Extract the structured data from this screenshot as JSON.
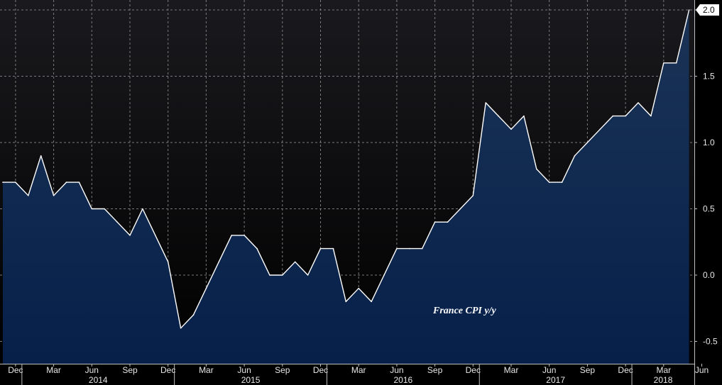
{
  "chart_data": {
    "type": "area",
    "annotation": "France CPI y/y",
    "x": [
      "2013-11",
      "2013-12",
      "2014-01",
      "2014-02",
      "2014-03",
      "2014-04",
      "2014-05",
      "2014-06",
      "2014-07",
      "2014-08",
      "2014-09",
      "2014-10",
      "2014-11",
      "2014-12",
      "2015-01",
      "2015-02",
      "2015-03",
      "2015-04",
      "2015-05",
      "2015-06",
      "2015-07",
      "2015-08",
      "2015-09",
      "2015-10",
      "2015-11",
      "2015-12",
      "2016-01",
      "2016-02",
      "2016-03",
      "2016-04",
      "2016-05",
      "2016-06",
      "2016-07",
      "2016-08",
      "2016-09",
      "2016-10",
      "2016-11",
      "2016-12",
      "2017-01",
      "2017-02",
      "2017-03",
      "2017-04",
      "2017-05",
      "2017-06",
      "2017-07",
      "2017-08",
      "2017-09",
      "2017-10",
      "2017-11",
      "2017-12",
      "2018-01",
      "2018-02",
      "2018-03",
      "2018-04",
      "2018-05"
    ],
    "values": [
      0.7,
      0.7,
      0.6,
      0.9,
      0.6,
      0.7,
      0.7,
      0.5,
      0.5,
      0.4,
      0.3,
      0.5,
      0.3,
      0.1,
      -0.4,
      -0.3,
      -0.1,
      0.1,
      0.3,
      0.3,
      0.2,
      0.0,
      0.0,
      0.1,
      0.0,
      0.2,
      0.2,
      -0.2,
      -0.1,
      -0.2,
      0.0,
      0.2,
      0.2,
      0.2,
      0.4,
      0.4,
      0.5,
      0.6,
      1.3,
      1.2,
      1.1,
      1.2,
      0.8,
      0.7,
      0.7,
      0.9,
      1.0,
      1.1,
      1.2,
      1.2,
      1.3,
      1.2,
      1.6,
      1.6,
      2.0
    ],
    "y_ticks": [
      -0.5,
      0.0,
      0.5,
      1.0,
      1.5,
      2.0
    ],
    "y_tick_labels": [
      "-0.5",
      "0.0",
      "0.5",
      "1.0",
      "1.5",
      "2.0"
    ],
    "ylim": [
      -0.7,
      2.05
    ],
    "x_tick_labels": [
      {
        "month": "2013-12",
        "label": "Dec"
      },
      {
        "month": "2014-03",
        "label": "Mar"
      },
      {
        "month": "2014-06",
        "label": "Jun"
      },
      {
        "month": "2014-09",
        "label": "Sep"
      },
      {
        "month": "2014-12",
        "label": "Dec"
      },
      {
        "month": "2015-03",
        "label": "Mar"
      },
      {
        "month": "2015-06",
        "label": "Jun"
      },
      {
        "month": "2015-09",
        "label": "Sep"
      },
      {
        "month": "2015-12",
        "label": "Dec"
      },
      {
        "month": "2016-03",
        "label": "Mar"
      },
      {
        "month": "2016-06",
        "label": "Jun"
      },
      {
        "month": "2016-09",
        "label": "Sep"
      },
      {
        "month": "2016-12",
        "label": "Dec"
      },
      {
        "month": "2017-03",
        "label": "Mar"
      },
      {
        "month": "2017-06",
        "label": "Jun"
      },
      {
        "month": "2017-09",
        "label": "Sep"
      },
      {
        "month": "2017-12",
        "label": "Dec"
      },
      {
        "month": "2018-03",
        "label": "Mar"
      },
      {
        "month": "2018-06",
        "label": "Jun"
      }
    ],
    "year_labels": [
      "2014",
      "2015",
      "2016",
      "2017",
      "2018"
    ],
    "last_value_label": "2.0",
    "grid": true,
    "colors": {
      "background": "#000000",
      "plot_top": "#1a1a1e",
      "plot_bottom": "#000000",
      "area_top": "#1b3356",
      "area_bottom": "#06204a",
      "line": "#ffffff",
      "grid": "#7a7a7a",
      "axis_text": "#e6e6e6",
      "last_label_bg": "#ffffff"
    }
  }
}
